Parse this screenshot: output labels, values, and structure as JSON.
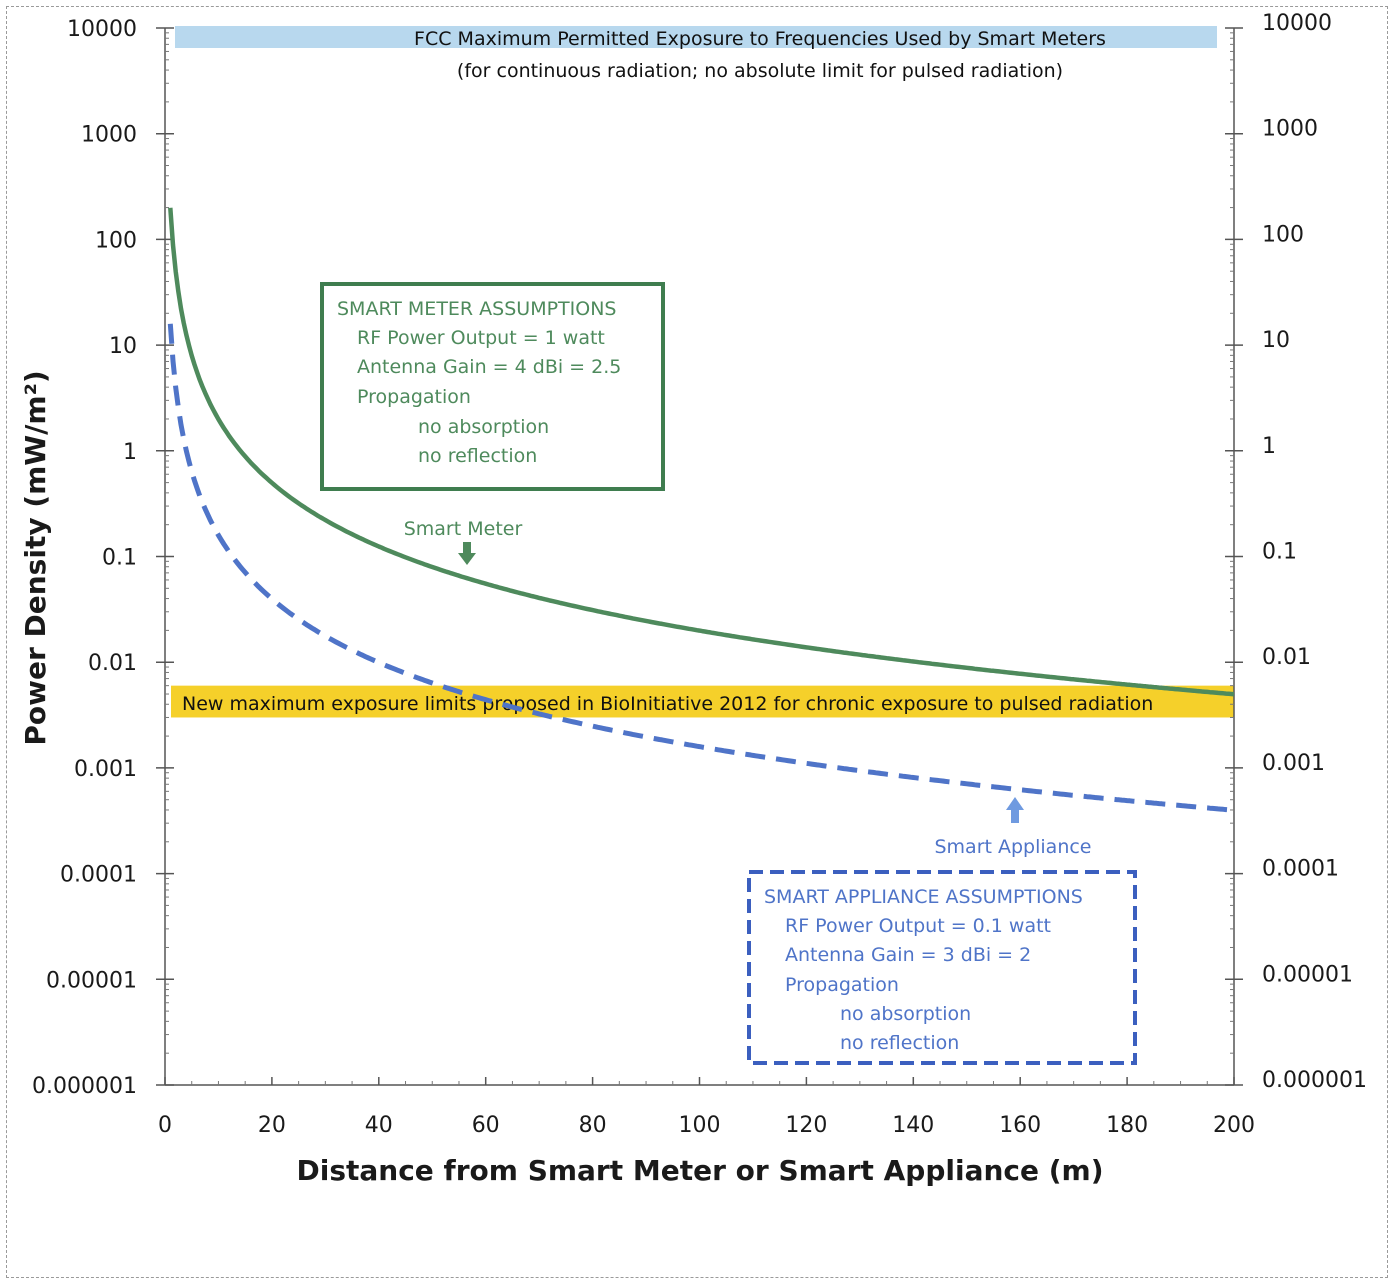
{
  "chart_data": {
    "type": "line",
    "xlabel": "Distance from Smart Meter or Smart Appliance (m)",
    "ylabel": "Power Density (mW/m²)",
    "x_scale": "linear",
    "y_scale": "log",
    "xlim": [
      0,
      200
    ],
    "ylim": [
      1e-06,
      10000
    ],
    "x_ticks": [
      "0",
      "20",
      "40",
      "60",
      "80",
      "100",
      "120",
      "140",
      "160",
      "180",
      "200"
    ],
    "x_tick_values": [
      0,
      20,
      40,
      60,
      80,
      100,
      120,
      140,
      160,
      180,
      200
    ],
    "y_ticks": [
      "10000",
      "1000",
      "100",
      "10",
      "1",
      "0.1",
      "0.01",
      "0.001",
      "0.0001",
      "0.00001",
      "0.000001"
    ],
    "y_tick_values": [
      10000,
      1000,
      100,
      10,
      1,
      0.1,
      0.01,
      0.001,
      0.0001,
      1e-05,
      1e-06
    ],
    "secondary_y_axis": true,
    "grid": false,
    "series": [
      {
        "name": "Smart Meter",
        "style": "solid",
        "color": "#4e8a5c",
        "x": [
          1,
          2,
          3,
          5,
          10,
          20,
          30,
          40,
          50,
          60,
          80,
          100,
          120,
          140,
          160,
          180,
          200
        ],
        "y": [
          199,
          49.7,
          22.1,
          7.96,
          1.99,
          0.497,
          0.221,
          0.124,
          0.0796,
          0.0553,
          0.0311,
          0.0199,
          0.0138,
          0.0101,
          0.0078,
          0.0061,
          0.005
        ]
      },
      {
        "name": "Smart Appliance",
        "style": "dashed",
        "color": "#4f74c8",
        "x": [
          1,
          2,
          3,
          5,
          10,
          20,
          30,
          40,
          50,
          60,
          80,
          100,
          120,
          140,
          160,
          180,
          200
        ],
        "y": [
          15.9,
          3.98,
          1.77,
          0.637,
          0.159,
          0.0398,
          0.0177,
          0.00995,
          0.00637,
          0.00442,
          0.00249,
          0.00159,
          0.0011,
          0.00081,
          0.00062,
          0.00049,
          0.0004
        ]
      }
    ],
    "bands": [
      {
        "label": "FCC Maximum Permitted Exposure to Frequencies Used by Smart Meters",
        "y_range": [
          6000,
          10000
        ],
        "color": "#b8d8ee"
      },
      {
        "label": "New maximum exposure limits proposed in BioInitiative 2012 for chronic exposure to pulsed radiation",
        "y_range": [
          0.003,
          0.006
        ],
        "color": "#f5d02a"
      }
    ],
    "annotations": {
      "fcc_note": "(for continuous  radiation; no absolute limit for pulsed radiation)",
      "smart_meter_label": "Smart Meter",
      "smart_appliance_label": "Smart Appliance",
      "smart_meter_box": {
        "title": "SMART METER ASSUMPTIONS",
        "lines": [
          "RF Power  Output = 1 watt",
          "Antenna Gain =  4 dBi = 2.5",
          "Propagation"
        ],
        "sub_lines": [
          "no absorption",
          "no reflection"
        ],
        "color": "#4e8a5c"
      },
      "smart_appliance_box": {
        "title": "SMART APPLIANCE ASSUMPTIONS",
        "lines": [
          "RF Power Output = 0.1 watt",
          "Antenna Gain = 3 dBi = 2",
          "Propagation"
        ],
        "sub_lines": [
          "no absorption",
          "no reflection"
        ],
        "color": "#4f74c8"
      }
    }
  }
}
